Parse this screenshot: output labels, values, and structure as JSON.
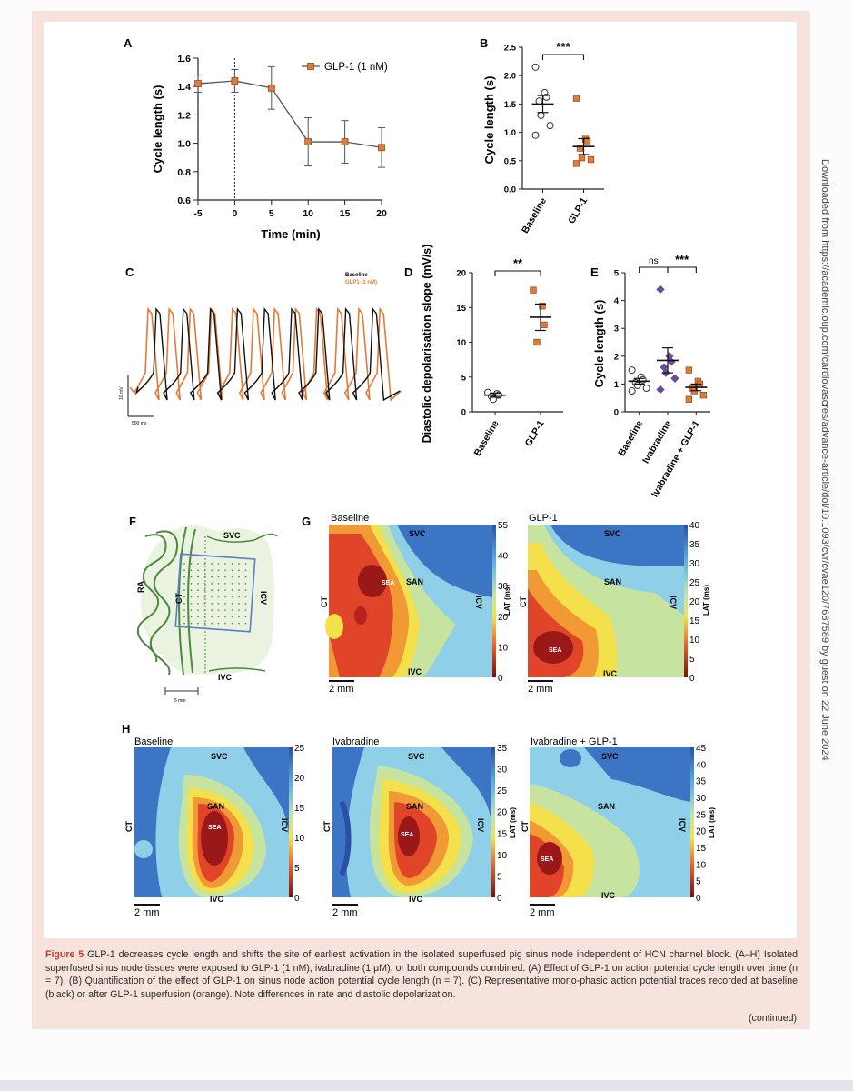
{
  "side_note": "Downloaded from https://academic.oup.com/cardiovascres/advance-article/doi/10.1093/cvr/cvae120/7687589 by guest on 22 June 2024",
  "caption": {
    "fig_label": "Figure 5",
    "text": "GLP-1 decreases cycle length and shifts the site of earliest activation in the isolated superfused pig sinus node independent of HCN channel block. (A–H) Isolated superfused sinus node tissues were exposed to GLP-1 (1 nM), ivabradine (1 μM), or both compounds combined. (A) Effect of GLP-1 on action potential cycle length over time (n = 7). (B) Quantification of the effect of GLP-1 on sinus node action potential cycle length (n = 7). (C) Representative mono-phasic action potential traces recorded at baseline (black) or after GLP-1 superfusion (orange). Note differences in rate and diastolic depolarization.",
    "continued": "(continued)"
  },
  "colors": {
    "orange": "#e07b39",
    "purple": "#6a4c9c",
    "black": "#111111"
  },
  "panels": {
    "A": {
      "letter": "A"
    },
    "B": {
      "letter": "B"
    },
    "C": {
      "letter": "C"
    },
    "D": {
      "letter": "D"
    },
    "E": {
      "letter": "E"
    },
    "F": {
      "letter": "F"
    },
    "G": {
      "letter": "G"
    },
    "H": {
      "letter": "H"
    }
  },
  "panelC": {
    "legend_baseline": "Baseline",
    "legend_glp1": "GLP1 (1 nM)",
    "scale_y": "10 mV",
    "scale_x": "500 ms"
  },
  "panelF": {
    "svc": "SVC",
    "ivc": "IVC",
    "ra": "RA",
    "ct": "CT",
    "icv": "ICV",
    "scale": "5 mm"
  },
  "maps": {
    "scale": "2 mm",
    "lat_label": "LAT (ms)",
    "G": [
      {
        "title": "Baseline",
        "ticks": [
          "55",
          "40",
          "30",
          "20",
          "10",
          "0"
        ]
      },
      {
        "title": "GLP-1",
        "ticks": [
          "40",
          "35",
          "30",
          "25",
          "20",
          "15",
          "10",
          "5",
          "0"
        ]
      }
    ],
    "H": [
      {
        "title": "Baseline",
        "ticks": [
          "25",
          "20",
          "15",
          "10",
          "5",
          "0"
        ]
      },
      {
        "title": "Ivabradine",
        "ticks": [
          "35",
          "30",
          "25",
          "20",
          "15",
          "10",
          "5",
          "0"
        ]
      },
      {
        "title": "Ivabradine + GLP-1",
        "ticks": [
          "45",
          "40",
          "35",
          "30",
          "25",
          "20",
          "15",
          "10",
          "5",
          "0"
        ]
      }
    ],
    "labels": {
      "svc": "SVC",
      "ivc": "IVC",
      "san": "SAN",
      "sea": "SEA",
      "ct": "CT",
      "icv": "ICV"
    }
  },
  "chart_data": [
    {
      "panel": "A",
      "type": "line",
      "xlabel": "Time (min)",
      "ylabel": "Cycle length (s)",
      "x": [
        -5,
        0,
        5,
        10,
        15,
        20
      ],
      "xticks": [
        "-5",
        "0",
        "5",
        "10",
        "15",
        "20"
      ],
      "yticks": [
        "0.6",
        "0.8",
        "1.0",
        "1.2",
        "1.4",
        "1.6"
      ],
      "ylim": [
        0.6,
        1.6
      ],
      "series": [
        {
          "name": "GLP-1 (1 nM)",
          "values": [
            1.42,
            1.44,
            1.39,
            1.01,
            1.01,
            0.97
          ],
          "error": [
            0.06,
            0.08,
            0.15,
            0.17,
            0.15,
            0.14
          ]
        }
      ],
      "marker_line_x": 0
    },
    {
      "panel": "B",
      "type": "scatter",
      "ylabel": "Cycle length (s)",
      "ylim": [
        0,
        2.5
      ],
      "yticks": [
        "0.0",
        "0.5",
        "1.0",
        "1.5",
        "2.0",
        "2.5"
      ],
      "categories": [
        "Baseline",
        "GLP-1"
      ],
      "points": [
        [
          2.15,
          1.7,
          1.62,
          1.55,
          1.3,
          1.12,
          0.95
        ],
        [
          1.6,
          0.88,
          0.85,
          0.72,
          0.55,
          0.52,
          0.45
        ]
      ],
      "means": [
        1.5,
        0.75
      ],
      "sem": [
        0.15,
        0.14
      ],
      "significance": "***"
    },
    {
      "panel": "D",
      "type": "scatter",
      "ylabel": "Diastolic depolarisation slope (mV/s)",
      "ylim": [
        0,
        20
      ],
      "yticks": [
        "0",
        "5",
        "10",
        "15",
        "20"
      ],
      "categories": [
        "Baseline",
        "GLP-1"
      ],
      "points": [
        [
          2.8,
          2.6,
          2.4,
          2.2,
          1.8
        ],
        [
          17.5,
          15.2,
          12.5,
          10.0
        ]
      ],
      "means": [
        2.4,
        13.6
      ],
      "sem": [
        0.3,
        1.9
      ],
      "significance": "**"
    },
    {
      "panel": "E",
      "type": "scatter",
      "ylabel": "Cycle length (s)",
      "ylim": [
        0,
        5
      ],
      "yticks": [
        "0",
        "1",
        "2",
        "3",
        "4",
        "5"
      ],
      "categories": [
        "Baseline",
        "Ivabradine",
        "Ivabradine + GLP-1"
      ],
      "points": [
        [
          1.5,
          1.25,
          1.15,
          1.05,
          0.95,
          0.85,
          0.75
        ],
        [
          4.4,
          2.0,
          1.8,
          1.6,
          1.4,
          1.2,
          0.8
        ],
        [
          1.5,
          1.1,
          1.0,
          0.85,
          0.75,
          0.6,
          0.45
        ]
      ],
      "means": [
        1.1,
        1.85,
        0.88
      ],
      "sem": [
        0.1,
        0.45,
        0.12
      ],
      "significance": [
        "ns",
        "***"
      ]
    }
  ]
}
